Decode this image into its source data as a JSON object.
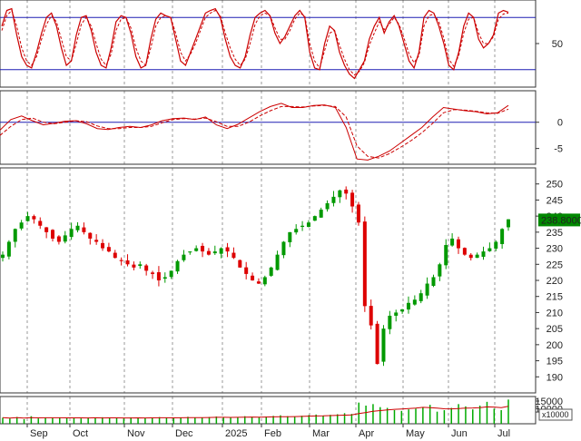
{
  "colors": {
    "background": "#ffffff",
    "panel_border": "#333333",
    "grid": "#9a9a9a",
    "reference_line": "#1f1fb4",
    "indicator_main": "#cc0000",
    "indicator_signal": "#cc0000",
    "candle_up": "#009900",
    "candle_down": "#dd0000",
    "volume_bar": "#00aa00",
    "volume_ma": "#cc0000",
    "price_tag_bg": "#008800",
    "price_tag_text": "#ffffff"
  },
  "chart_data": [
    {
      "id": "stochastic",
      "type": "line",
      "ylim": [
        0,
        100
      ],
      "reference_lines": [
        20,
        80
      ],
      "yticks": [
        {
          "value": 50,
          "label": "50"
        }
      ],
      "series": [
        {
          "values": [
            70,
            88,
            90,
            60,
            35,
            25,
            22,
            40,
            62,
            80,
            85,
            70,
            45,
            25,
            30,
            60,
            80,
            82,
            65,
            40,
            25,
            22,
            45,
            75,
            82,
            80,
            62,
            35,
            22,
            25,
            55,
            78,
            85,
            82,
            80,
            55,
            30,
            25,
            40,
            55,
            70,
            85,
            88,
            90,
            80,
            55,
            35,
            25,
            22,
            35,
            60,
            80,
            85,
            88,
            82,
            62,
            50,
            58,
            70,
            82,
            88,
            80,
            40,
            22,
            20,
            50,
            70,
            65,
            40,
            25,
            15,
            10,
            20,
            30,
            55,
            70,
            80,
            62,
            75,
            82,
            70,
            50,
            30,
            22,
            40,
            80,
            88,
            85,
            70,
            50,
            25,
            20,
            40,
            70,
            85,
            80,
            55,
            45,
            50,
            60,
            85,
            88,
            86
          ]
        },
        {
          "values": [
            65,
            82,
            88,
            70,
            45,
            30,
            25,
            35,
            55,
            72,
            82,
            75,
            55,
            35,
            30,
            50,
            72,
            80,
            70,
            50,
            32,
            25,
            38,
            65,
            78,
            80,
            68,
            45,
            30,
            25,
            45,
            70,
            80,
            82,
            80,
            62,
            40,
            30,
            38,
            50,
            65,
            80,
            85,
            88,
            82,
            62,
            45,
            32,
            25,
            32,
            50,
            72,
            82,
            85,
            82,
            68,
            55,
            55,
            65,
            78,
            85,
            82,
            50,
            30,
            22,
            42,
            62,
            65,
            48,
            32,
            20,
            14,
            18,
            28,
            48,
            62,
            75,
            66,
            72,
            80,
            72,
            56,
            38,
            28,
            36,
            70,
            82,
            84,
            75,
            56,
            32,
            24,
            36,
            62,
            78,
            80,
            62,
            50,
            50,
            58,
            78,
            84,
            85
          ]
        }
      ]
    },
    {
      "id": "macd",
      "type": "line",
      "ylim": [
        -8,
        6
      ],
      "reference_lines": [
        0
      ],
      "yticks": [
        {
          "value": 0,
          "label": "0"
        },
        {
          "value": -5,
          "label": "-5"
        }
      ],
      "series": [
        {
          "values": [
            -1.5,
            0.5,
            1.2,
            0.3,
            -0.5,
            -0.2,
            0.2,
            0.3,
            -0.3,
            -1.2,
            -1.4,
            -1.0,
            -0.8,
            -1.0,
            -0.5,
            0.3,
            0.7,
            0.8,
            0.5,
            1.0,
            -0.5,
            -1.2,
            -0.4,
            0.8,
            2.0,
            3.0,
            3.6,
            2.8,
            2.8,
            3.2,
            3.3,
            2.8,
            -1.0,
            -7.0,
            -7.2,
            -6.5,
            -5.5,
            -4.0,
            -2.5,
            -1.0,
            1.0,
            2.8,
            2.5,
            2.2,
            2.0,
            1.6,
            1.8,
            3.2
          ]
        },
        {
          "values": [
            -2.5,
            -0.8,
            0.5,
            0.8,
            0.0,
            -0.3,
            0.0,
            0.3,
            0.1,
            -0.7,
            -1.2,
            -1.2,
            -1.0,
            -1.0,
            -0.8,
            -0.1,
            0.5,
            0.7,
            0.6,
            0.8,
            0.1,
            -0.8,
            -0.8,
            0.0,
            1.2,
            2.2,
            3.0,
            3.0,
            2.9,
            3.1,
            3.2,
            3.0,
            1.0,
            -4.5,
            -6.5,
            -6.8,
            -6.0,
            -4.8,
            -3.5,
            -2.0,
            -0.2,
            1.8,
            2.4,
            2.3,
            2.1,
            1.8,
            1.7,
            2.5
          ]
        }
      ]
    },
    {
      "id": "price",
      "type": "candlestick",
      "ylim": [
        185,
        255
      ],
      "yticks": [
        {
          "value": 190,
          "label": "190"
        },
        {
          "value": 195,
          "label": "195"
        },
        {
          "value": 200,
          "label": "200"
        },
        {
          "value": 205,
          "label": "205"
        },
        {
          "value": 210,
          "label": "210"
        },
        {
          "value": 215,
          "label": "215"
        },
        {
          "value": 220,
          "label": "220"
        },
        {
          "value": 225,
          "label": "225"
        },
        {
          "value": 230,
          "label": "230"
        },
        {
          "value": 235,
          "label": "235"
        },
        {
          "value": 240,
          "label": "240"
        },
        {
          "value": 245,
          "label": "245"
        },
        {
          "value": 250,
          "label": "250"
        }
      ],
      "last_price_label": "238.8000",
      "last_price": 238.8,
      "close_series": [
        228,
        232,
        236,
        238,
        240,
        239,
        237,
        235,
        233,
        232,
        234,
        236,
        237,
        235,
        233,
        232,
        230,
        229,
        227,
        226,
        225,
        224,
        225,
        223,
        222,
        220,
        221,
        223,
        226,
        228,
        229,
        230,
        229,
        228,
        229,
        230,
        229,
        227,
        224,
        222,
        220,
        219,
        221,
        224,
        228,
        232,
        235,
        236,
        237,
        238,
        240,
        242,
        244,
        246,
        248,
        247,
        243,
        238,
        212,
        206,
        194,
        205,
        209,
        210,
        211,
        213,
        214,
        216,
        219,
        221,
        225,
        231,
        233,
        230,
        228,
        227,
        228,
        229,
        230,
        232,
        236,
        239
      ]
    },
    {
      "id": "volume",
      "type": "bar",
      "yticks": [
        {
          "value": 15000,
          "label": "15000"
        },
        {
          "value": 10000,
          "label": "10000"
        }
      ],
      "unit_label": "x10000",
      "values": [
        4000,
        3500,
        4500,
        3000,
        5000,
        3500,
        4200,
        3800,
        4000,
        3600,
        3900,
        3500,
        4100,
        3700,
        4300,
        3900,
        4000,
        3500,
        4200,
        3800,
        3600,
        4000,
        4400,
        4100,
        3700,
        4200,
        4600,
        4100,
        3900,
        4500,
        4800,
        4200,
        4000,
        4400,
        5000,
        4600,
        4200,
        4800,
        5200,
        5600,
        5000,
        4700,
        5300,
        5800,
        6100,
        5400,
        5900,
        6300,
        7000,
        6500,
        14000,
        12000,
        13000,
        11000,
        10500,
        9000,
        8500,
        9500,
        10000,
        11000,
        12500,
        8000,
        9000,
        10500,
        13000,
        11500,
        9500,
        12000,
        14500,
        10000,
        9000,
        16000
      ]
    },
    {
      "id": "x-axis",
      "type": "axis",
      "months": [
        {
          "label": "Sep"
        },
        {
          "label": "Oct"
        },
        {
          "label": "Nov"
        },
        {
          "label": "Dec"
        },
        {
          "label": "2025"
        },
        {
          "label": "Feb"
        },
        {
          "label": "Mar"
        },
        {
          "label": "Apr"
        },
        {
          "label": "May"
        },
        {
          "label": "Jun"
        },
        {
          "label": "Jul"
        }
      ]
    }
  ]
}
